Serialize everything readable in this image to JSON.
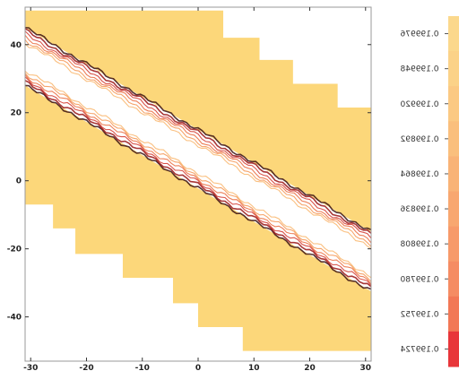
{
  "chart_data": {
    "type": "contour",
    "title": "",
    "xlabel": "",
    "ylabel": "",
    "xlim": [
      -31,
      31
    ],
    "ylim": [
      -53,
      51
    ],
    "x_ticks": [
      -30,
      -20,
      -10,
      0,
      10,
      20,
      30
    ],
    "y_ticks": [
      -40,
      -20,
      0,
      20,
      40
    ],
    "x_tick_labels": [
      "-30",
      "-20",
      "-10",
      "0",
      "10",
      "20",
      "30"
    ],
    "y_tick_labels": [
      "-40",
      "-20",
      "0",
      "20",
      "40"
    ],
    "grid": false,
    "colorbar": {
      "placement": "right",
      "mirrored_labels": true,
      "labels": [
        "0.199976",
        "0.199948",
        "0.199920",
        "0.199892",
        "0.199864",
        "0.199836",
        "0.199808",
        "0.199780",
        "0.199752",
        "0.199724"
      ],
      "colors": [
        "#fbd88c",
        "#fbd288",
        "#fbc983",
        "#fabf7d",
        "#f9b377",
        "#f8a770",
        "#f79a6a",
        "#f58c63",
        "#f27856",
        "#e8363a"
      ]
    },
    "regions": {
      "fill_color": "#fcd77a",
      "upper_band": {
        "boundary_line": {
          "from": [
            -31,
            45
          ],
          "to": [
            31,
            -15
          ]
        },
        "staircase_top_right": [
          [
            -31,
            50
          ],
          [
            4.5,
            50
          ],
          [
            4.5,
            42
          ],
          [
            11,
            42
          ],
          [
            11,
            35.5
          ],
          [
            17,
            35.5
          ],
          [
            17,
            28.5
          ],
          [
            25,
            28.5
          ],
          [
            25,
            21.5
          ],
          [
            31,
            21.5
          ]
        ]
      },
      "lower_band": {
        "boundary_line": {
          "from": [
            -31,
            28
          ],
          "to": [
            31,
            -32.5
          ]
        },
        "staircase_bottom_left": [
          [
            -31,
            -7
          ],
          [
            -26,
            -7
          ],
          [
            -26,
            -14
          ],
          [
            -22,
            -14
          ],
          [
            -22,
            -21.5
          ],
          [
            -13.5,
            -21.5
          ],
          [
            -13.5,
            -28.5
          ],
          [
            -4.5,
            -28.5
          ],
          [
            -4.5,
            -36
          ],
          [
            0,
            -36
          ],
          [
            0,
            -43
          ],
          [
            8,
            -43
          ],
          [
            8,
            -50
          ],
          [
            31,
            -50
          ]
        ]
      },
      "edge_line_colors": [
        "#3a1010",
        "#9a1515",
        "#d2362c",
        "#ea6a3c",
        "#f49552",
        "#f9b56a"
      ]
    }
  }
}
